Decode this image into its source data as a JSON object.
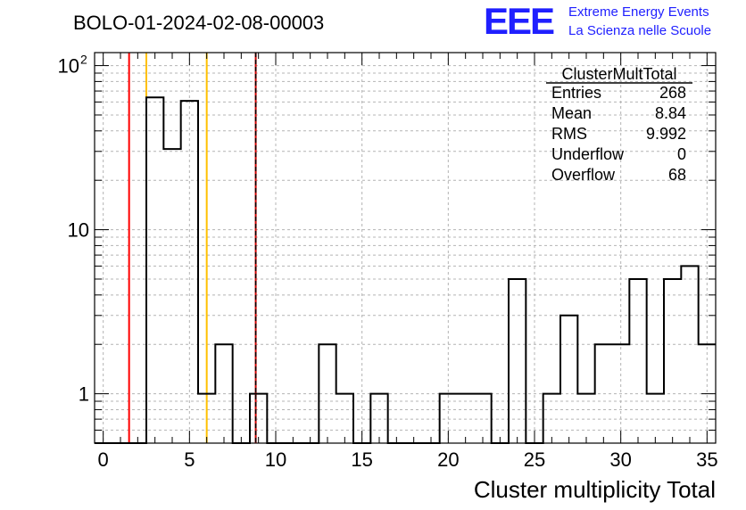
{
  "header": {
    "run_title": "BOLO-01-2024-02-08-00003",
    "logo_text": "EEE",
    "logo_line1": "Extreme Energy Events",
    "logo_line2": "La Scienza nelle Scuole"
  },
  "colors": {
    "logo_blue": "#1f1fff",
    "hist_line": "#000000",
    "grid": "#b4b4b4",
    "red_marker": "#ff0000",
    "orange_marker": "#ffc000",
    "darkred_marker": "#cc0000"
  },
  "stats_box": {
    "title": "ClusterMultTotal",
    "rows": [
      {
        "label": "Entries",
        "value": "268"
      },
      {
        "label": "Mean",
        "value": "8.84"
      },
      {
        "label": "RMS",
        "value": "9.992"
      },
      {
        "label": "Underflow",
        "value": "0"
      },
      {
        "label": "Overflow",
        "value": "68"
      }
    ]
  },
  "chart_data": {
    "type": "histogram",
    "xlabel": "Cluster multiplicity Total",
    "ylabel": "",
    "xlim": [
      -0.5,
      35.5
    ],
    "ylim": [
      0.5,
      120
    ],
    "y_scale": "log",
    "grid": true,
    "x_tick_labels": [
      "0",
      "5",
      "10",
      "15",
      "20",
      "25",
      "30",
      "35"
    ],
    "y_tick_labels": [
      {
        "value": 1,
        "label": "1"
      },
      {
        "value": 10,
        "label": "10"
      },
      {
        "value": 100,
        "label": "10",
        "exponent": "2"
      }
    ],
    "bin_width": 1,
    "bins": [
      {
        "x": 0,
        "count": 0
      },
      {
        "x": 1,
        "count": 0
      },
      {
        "x": 2,
        "count": 0
      },
      {
        "x": 3,
        "count": 64
      },
      {
        "x": 4,
        "count": 31
      },
      {
        "x": 5,
        "count": 61
      },
      {
        "x": 6,
        "count": 1
      },
      {
        "x": 7,
        "count": 2
      },
      {
        "x": 8,
        "count": 0
      },
      {
        "x": 9,
        "count": 1
      },
      {
        "x": 10,
        "count": 0
      },
      {
        "x": 11,
        "count": 0
      },
      {
        "x": 12,
        "count": 0
      },
      {
        "x": 13,
        "count": 2
      },
      {
        "x": 14,
        "count": 1
      },
      {
        "x": 15,
        "count": 0
      },
      {
        "x": 16,
        "count": 1
      },
      {
        "x": 17,
        "count": 0
      },
      {
        "x": 18,
        "count": 0
      },
      {
        "x": 19,
        "count": 0
      },
      {
        "x": 20,
        "count": 1
      },
      {
        "x": 21,
        "count": 1
      },
      {
        "x": 22,
        "count": 1
      },
      {
        "x": 23,
        "count": 0
      },
      {
        "x": 24,
        "count": 5
      },
      {
        "x": 25,
        "count": 0
      },
      {
        "x": 26,
        "count": 1
      },
      {
        "x": 27,
        "count": 3
      },
      {
        "x": 28,
        "count": 1
      },
      {
        "x": 29,
        "count": 2
      },
      {
        "x": 30,
        "count": 2
      },
      {
        "x": 31,
        "count": 5
      },
      {
        "x": 32,
        "count": 1
      },
      {
        "x": 33,
        "count": 5
      },
      {
        "x": 34,
        "count": 6
      },
      {
        "x": 35,
        "count": 2
      }
    ],
    "vertical_markers": [
      {
        "x": 1.5,
        "color": "#ff0000",
        "style": "solid"
      },
      {
        "x": 2.5,
        "color": "#ffc000",
        "style": "solid"
      },
      {
        "x": 6.0,
        "color": "#ffc000",
        "style": "solid"
      },
      {
        "x": 8.84,
        "color": "#cc0000",
        "style": "solid"
      },
      {
        "x": 8.84,
        "color": "#000000",
        "style": "dashed"
      }
    ]
  }
}
